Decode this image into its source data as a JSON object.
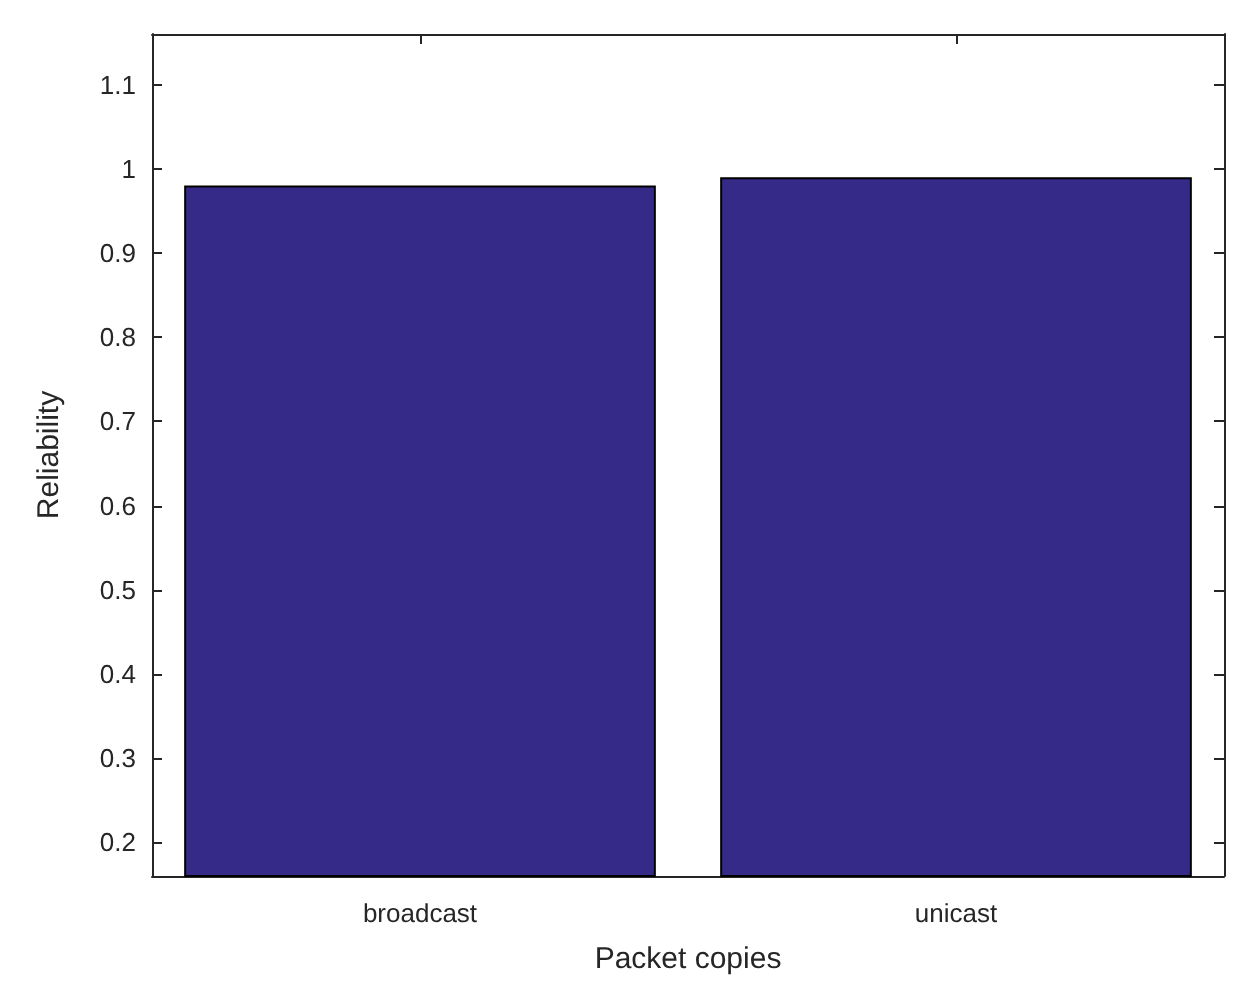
{
  "chart_data": {
    "type": "bar",
    "xlabel": "Packet copies",
    "ylabel": "Reliability",
    "categories": [
      "broadcast",
      "unicast"
    ],
    "values": [
      0.98,
      0.99
    ],
    "color": "#352a87",
    "ylim": [
      0.16,
      1.16
    ],
    "yticks": [
      0.2,
      0.3,
      0.4,
      0.5,
      0.6,
      0.7,
      0.8,
      0.9,
      1,
      1.1
    ],
    "grid": false
  }
}
